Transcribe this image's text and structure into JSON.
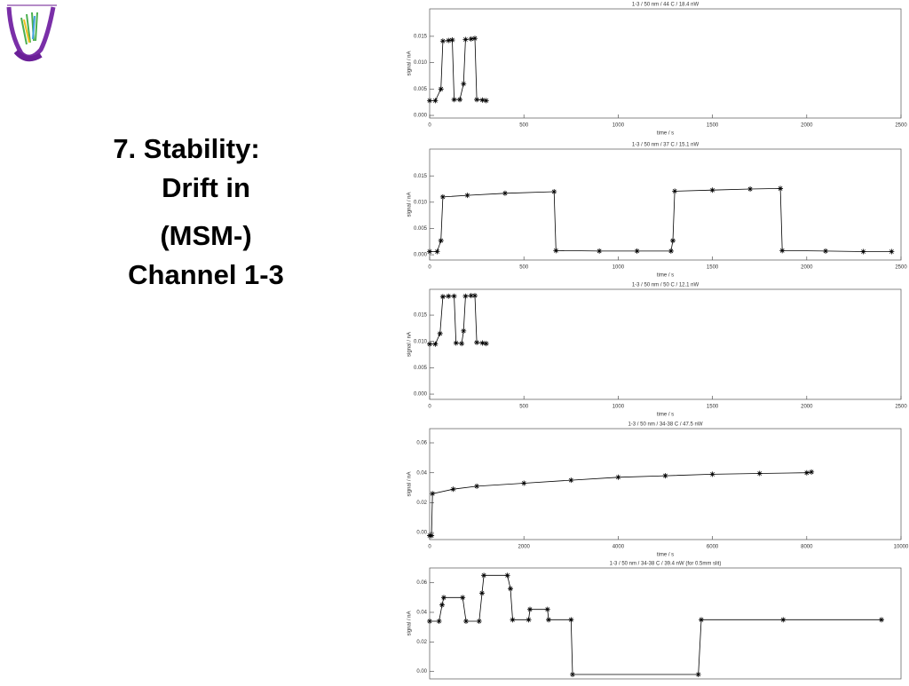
{
  "slide": {
    "title_lines": [
      "7. Stability:",
      "Drift in",
      "(MSM-)",
      "Channel 1-3"
    ]
  },
  "chart_data": [
    {
      "type": "line",
      "title": "1-3 / 50 nm / 44 C / 18.4 nW",
      "x_label": "time / s",
      "y_label": "signal / nA",
      "color": "#000000",
      "x": [
        0,
        30,
        60,
        70,
        100,
        120,
        130,
        160,
        180,
        190,
        220,
        240,
        250,
        280,
        300
      ],
      "values": [
        0.0028,
        0.0028,
        0.005,
        0.0141,
        0.0142,
        0.0143,
        0.003,
        0.003,
        0.006,
        0.0144,
        0.0145,
        0.0146,
        0.003,
        0.0029,
        0.0028
      ],
      "xlim": [
        0,
        2500
      ],
      "xticks": [
        0,
        500,
        1000,
        1500,
        2000,
        2500
      ],
      "ylim": [
        -0.0005,
        0.0202
      ],
      "yticks": [
        {
          "value": 0,
          "label": "0.000"
        },
        {
          "value": 0.005,
          "label": "0.005"
        },
        {
          "value": 0.01,
          "label": "0.010"
        },
        {
          "value": 0.015,
          "label": "0.015"
        }
      ]
    },
    {
      "type": "line",
      "title": "1-3 / 50 nm / 37 C / 15.1 nW",
      "x_label": "time / s",
      "y_label": "signal / nA",
      "color": "#000000",
      "x": [
        0,
        40,
        60,
        70,
        200,
        400,
        660,
        670,
        900,
        1100,
        1280,
        1290,
        1300,
        1500,
        1700,
        1860,
        1870,
        2100,
        2300,
        2450
      ],
      "values": [
        0.0006,
        0.0006,
        0.0027,
        0.011,
        0.0113,
        0.0117,
        0.012,
        0.0008,
        0.0007,
        0.0007,
        0.0007,
        0.0027,
        0.0121,
        0.0123,
        0.0125,
        0.0126,
        0.0008,
        0.0007,
        0.0006,
        0.0006
      ],
      "xlim": [
        0,
        2500
      ],
      "xticks": [
        0,
        500,
        1000,
        1500,
        2000,
        2500
      ],
      "ylim": [
        -0.001,
        0.0201
      ],
      "yticks": [
        {
          "value": 0,
          "label": "0.000"
        },
        {
          "value": 0.005,
          "label": "0.005"
        },
        {
          "value": 0.01,
          "label": "0.010"
        },
        {
          "value": 0.015,
          "label": "0.015"
        }
      ]
    },
    {
      "type": "line",
      "title": "1-3 / 50 nm / 50 C / 12.1 nW",
      "x_label": "time / s",
      "y_label": "signal / nA",
      "color": "#000000",
      "x": [
        0,
        30,
        55,
        70,
        100,
        130,
        140,
        170,
        180,
        190,
        220,
        240,
        250,
        280,
        300
      ],
      "values": [
        0.0095,
        0.0095,
        0.0115,
        0.0185,
        0.0186,
        0.0186,
        0.0097,
        0.0096,
        0.012,
        0.0186,
        0.0187,
        0.0187,
        0.0098,
        0.0097,
        0.0096
      ],
      "xlim": [
        0,
        2500
      ],
      "xticks": [
        0,
        500,
        1000,
        1500,
        2000,
        2500
      ],
      "ylim": [
        -0.001,
        0.0199
      ],
      "yticks": [
        {
          "value": 0,
          "label": "0.000"
        },
        {
          "value": 0.005,
          "label": "0.005"
        },
        {
          "value": 0.01,
          "label": "0.010"
        },
        {
          "value": 0.015,
          "label": "0.015"
        }
      ]
    },
    {
      "type": "line",
      "title": "1-3 / 50 nm / 34-38 C / 47.5 nW",
      "x_label": "time / s",
      "y_label": "signal / nA",
      "color": "#000000",
      "x": [
        0,
        40,
        60,
        500,
        1000,
        2000,
        3000,
        4000,
        5000,
        6000,
        7000,
        8000,
        8100
      ],
      "values": [
        -0.002,
        -0.002,
        0.026,
        0.029,
        0.031,
        0.033,
        0.035,
        0.037,
        0.038,
        0.039,
        0.0395,
        0.04,
        0.0405
      ],
      "xlim": [
        0,
        10000
      ],
      "xticks": [
        0,
        2000,
        4000,
        6000,
        8000,
        10000
      ],
      "ylim": [
        -0.0047,
        0.0695
      ],
      "yticks": [
        {
          "value": 0,
          "label": "0.00"
        },
        {
          "value": 0.02,
          "label": "0.02"
        },
        {
          "value": 0.04,
          "label": "0.04"
        },
        {
          "value": 0.06,
          "label": "0.06"
        }
      ]
    },
    {
      "type": "line",
      "title": "1-3 / 50 nm / 34-38 C / 39.4 nW (for 0.5mm slit)",
      "y_label": "signal / nA",
      "color": "#000000",
      "x": [
        0,
        200,
        264,
        300,
        700,
        772,
        1050,
        1111,
        1150,
        1650,
        1714,
        1760,
        2100,
        2128,
        2500,
        2524,
        3000,
        3032,
        5700,
        5763,
        7500,
        9585
      ],
      "values": [
        0.034,
        0.034,
        0.045,
        0.05,
        0.05,
        0.034,
        0.034,
        0.053,
        0.065,
        0.065,
        0.056,
        0.035,
        0.035,
        0.042,
        0.042,
        0.035,
        0.035,
        -0.002,
        -0.002,
        0.035,
        0.035,
        0.035
      ],
      "xlim": [
        0,
        10000
      ],
      "ylim": [
        -0.005,
        0.07
      ],
      "yticks": [
        {
          "value": 0,
          "label": "0.00"
        },
        {
          "value": 0.02,
          "label": "0.02"
        },
        {
          "value": 0.04,
          "label": "0.04"
        },
        {
          "value": 0.06,
          "label": "0.06"
        }
      ]
    }
  ]
}
